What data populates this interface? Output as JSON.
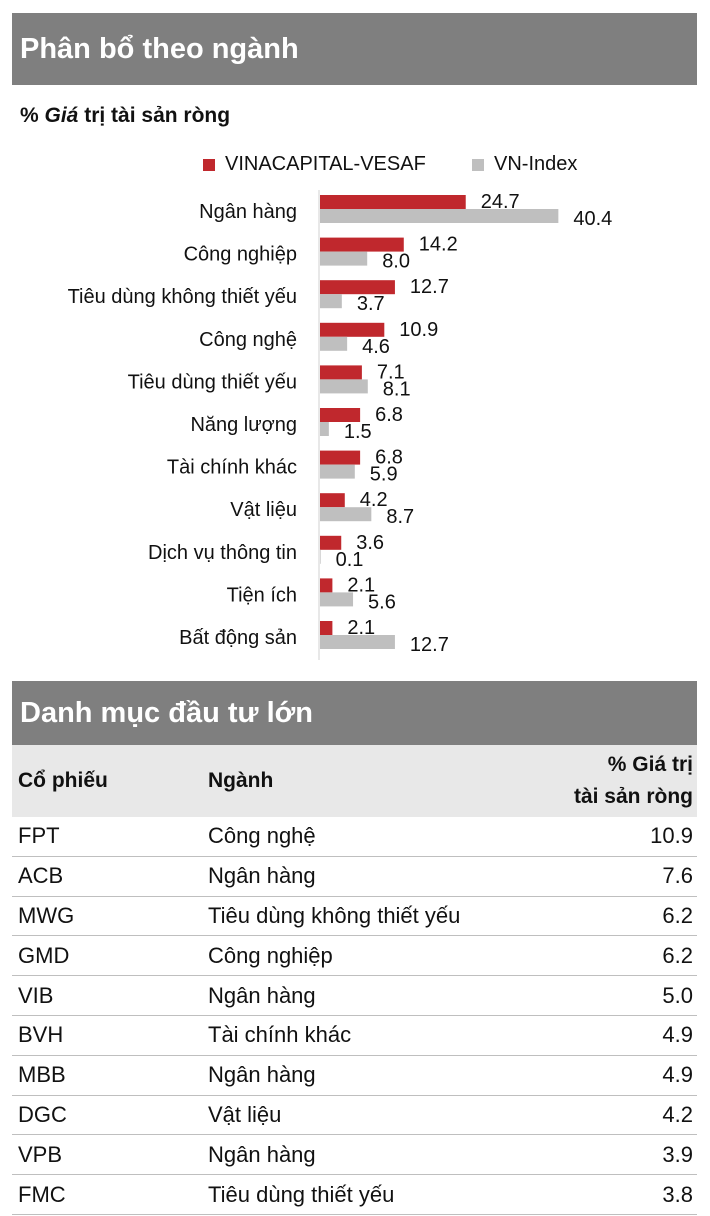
{
  "sections": {
    "allocation_title": "Phân bổ theo ngành",
    "subtitle_prefix": "% ",
    "subtitle_italic": "Giá",
    "subtitle_rest": " trị tài sản ròng",
    "holdings_title": "Danh mục đầu tư lớn"
  },
  "colors": {
    "fund": "#c0282d",
    "index": "#bfbfbf",
    "header_bg": "#7f7f7f",
    "table_header_bg": "#e8e8e8"
  },
  "chart_data": {
    "type": "bar",
    "orientation": "horizontal",
    "categories": [
      "Ngân hàng",
      "Công nghiệp",
      "Tiêu dùng không thiết yếu",
      "Công nghệ",
      "Tiêu dùng thiết yếu",
      "Năng lượng",
      "Tài chính khác",
      "Vật liệu",
      "Dịch vụ thông tin",
      "Tiện ích",
      "Bất động sản"
    ],
    "series": [
      {
        "name": "VINACAPITAL-VESAF",
        "values": [
          24.7,
          14.2,
          12.7,
          10.9,
          7.1,
          6.8,
          6.8,
          4.2,
          3.6,
          2.1,
          2.1
        ]
      },
      {
        "name": "VN-Index",
        "values": [
          40.4,
          8.0,
          3.7,
          4.6,
          8.1,
          1.5,
          5.9,
          8.7,
          0.1,
          5.6,
          12.7
        ]
      }
    ],
    "value_labels": [
      [
        "24.7",
        "14.2",
        "12.7",
        "10.9",
        "7.1",
        "6.8",
        "6.8",
        "4.2",
        "3.6",
        "2.1",
        "2.1"
      ],
      [
        "40.4",
        "8.0",
        "3.7",
        "4.6",
        "8.1",
        "1.5",
        "5.9",
        "8.7",
        "0.1",
        "5.6",
        "12.7"
      ]
    ],
    "xlim": [
      0,
      50
    ],
    "legend": "top",
    "grid": false
  },
  "table": {
    "headers": {
      "ticker": "Cổ phiếu",
      "sector": "Ngành",
      "nav_line1": "% Giá trị",
      "nav_line2": "tài sản ròng"
    },
    "rows": [
      {
        "ticker": "FPT",
        "sector": "Công nghệ",
        "nav": "10.9"
      },
      {
        "ticker": "ACB",
        "sector": "Ngân hàng",
        "nav": "7.6"
      },
      {
        "ticker": "MWG",
        "sector": "Tiêu dùng không thiết yếu",
        "nav": "6.2"
      },
      {
        "ticker": "GMD",
        "sector": "Công nghiệp",
        "nav": "6.2"
      },
      {
        "ticker": "VIB",
        "sector": "Ngân hàng",
        "nav": "5.0"
      },
      {
        "ticker": "BVH",
        "sector": "Tài chính khác",
        "nav": "4.9"
      },
      {
        "ticker": "MBB",
        "sector": "Ngân hàng",
        "nav": "4.9"
      },
      {
        "ticker": "DGC",
        "sector": "Vật liệu",
        "nav": "4.2"
      },
      {
        "ticker": "VPB",
        "sector": "Ngân hàng",
        "nav": "3.9"
      },
      {
        "ticker": "FMC",
        "sector": "Tiêu dùng thiết yếu",
        "nav": "3.8"
      }
    ]
  }
}
